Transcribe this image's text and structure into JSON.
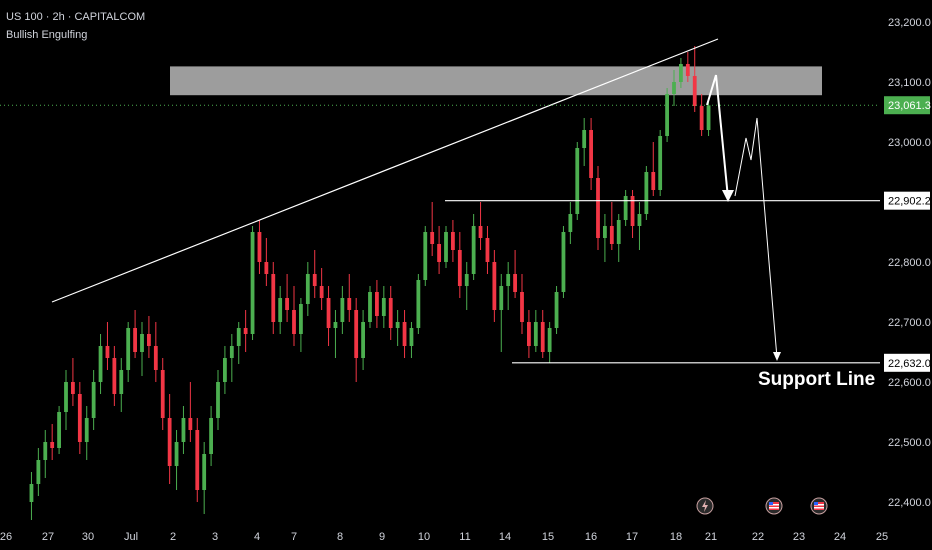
{
  "header": {
    "symbol": "US 100 · 2h · CAPITALCOM",
    "pattern": "Bullish Engulfing"
  },
  "colors": {
    "background": "#000000",
    "bull": "#4caf50",
    "bear": "#f23645",
    "current_price_tag": "#4caf50",
    "level_tag": "#ffffff",
    "resistance_zone": "#b8b8b8",
    "trendline": "#ffffff"
  },
  "chart_data": {
    "type": "candlestick",
    "ylim": [
      22370,
      23220
    ],
    "y_ticks": [
      {
        "value": 23200,
        "label": "23,200.0"
      },
      {
        "value": 23100,
        "label": "23,100.0"
      },
      {
        "value": 23000,
        "label": "23,000.0"
      },
      {
        "value": 22800,
        "label": "22,800.0"
      },
      {
        "value": 22700,
        "label": "22,700.0"
      },
      {
        "value": 22600,
        "label": "22,600.0"
      },
      {
        "value": 22500,
        "label": "22,500.0"
      },
      {
        "value": 22400,
        "label": "22,400.0"
      }
    ],
    "x_ticks": [
      "26",
      "27",
      "30",
      "Jul",
      "2",
      "3",
      "4",
      "7",
      "8",
      "9",
      "10",
      "11",
      "14",
      "15",
      "16",
      "17",
      "18",
      "21",
      "22",
      "23",
      "24",
      "25"
    ],
    "current_price": {
      "value": 23061.3,
      "label": "23,061.3"
    },
    "levels": [
      {
        "value": 22902.2,
        "label": "22,902.2"
      },
      {
        "value": 22632.0,
        "label": "22,632.0"
      }
    ],
    "resistance_zone": {
      "from": 23078,
      "to": 23126
    },
    "annotations": [
      {
        "text": "Support Line"
      }
    ],
    "event_icons": [
      "lightning-icon",
      "us-flag-icon",
      "us-flag-icon"
    ],
    "ohlc": [
      [
        22400,
        22450,
        22370,
        22430
      ],
      [
        22430,
        22490,
        22410,
        22470
      ],
      [
        22470,
        22520,
        22440,
        22500
      ],
      [
        22500,
        22530,
        22470,
        22490
      ],
      [
        22490,
        22560,
        22480,
        22550
      ],
      [
        22550,
        22620,
        22520,
        22600
      ],
      [
        22600,
        22640,
        22560,
        22580
      ],
      [
        22580,
        22600,
        22480,
        22500
      ],
      [
        22500,
        22560,
        22470,
        22540
      ],
      [
        22540,
        22620,
        22520,
        22600
      ],
      [
        22600,
        22680,
        22580,
        22660
      ],
      [
        22660,
        22700,
        22620,
        22640
      ],
      [
        22640,
        22660,
        22560,
        22580
      ],
      [
        22580,
        22640,
        22550,
        22620
      ],
      [
        22620,
        22700,
        22600,
        22690
      ],
      [
        22690,
        22720,
        22640,
        22650
      ],
      [
        22650,
        22700,
        22610,
        22680
      ],
      [
        22680,
        22710,
        22640,
        22660
      ],
      [
        22660,
        22700,
        22600,
        22620
      ],
      [
        22620,
        22640,
        22520,
        22540
      ],
      [
        22540,
        22580,
        22430,
        22460
      ],
      [
        22460,
        22520,
        22420,
        22500
      ],
      [
        22500,
        22560,
        22480,
        22540
      ],
      [
        22540,
        22600,
        22500,
        22520
      ],
      [
        22520,
        22540,
        22400,
        22420
      ],
      [
        22420,
        22500,
        22380,
        22480
      ],
      [
        22480,
        22560,
        22460,
        22540
      ],
      [
        22540,
        22620,
        22520,
        22600
      ],
      [
        22600,
        22660,
        22580,
        22640
      ],
      [
        22640,
        22680,
        22600,
        22660
      ],
      [
        22660,
        22700,
        22630,
        22690
      ],
      [
        22690,
        22720,
        22650,
        22680
      ],
      [
        22680,
        22860,
        22670,
        22850
      ],
      [
        22850,
        22870,
        22780,
        22800
      ],
      [
        22800,
        22840,
        22760,
        22780
      ],
      [
        22780,
        22800,
        22680,
        22700
      ],
      [
        22700,
        22760,
        22680,
        22740
      ],
      [
        22740,
        22780,
        22700,
        22720
      ],
      [
        22720,
        22760,
        22660,
        22680
      ],
      [
        22680,
        22740,
        22650,
        22730
      ],
      [
        22730,
        22800,
        22710,
        22780
      ],
      [
        22780,
        22820,
        22740,
        22760
      ],
      [
        22760,
        22790,
        22720,
        22740
      ],
      [
        22740,
        22760,
        22660,
        22690
      ],
      [
        22690,
        22720,
        22640,
        22700
      ],
      [
        22700,
        22760,
        22680,
        22740
      ],
      [
        22740,
        22780,
        22700,
        22720
      ],
      [
        22720,
        22740,
        22600,
        22640
      ],
      [
        22640,
        22720,
        22620,
        22700
      ],
      [
        22700,
        22760,
        22690,
        22750
      ],
      [
        22750,
        22770,
        22690,
        22710
      ],
      [
        22710,
        22760,
        22690,
        22740
      ],
      [
        22740,
        22760,
        22670,
        22690
      ],
      [
        22690,
        22720,
        22660,
        22700
      ],
      [
        22700,
        22720,
        22640,
        22660
      ],
      [
        22660,
        22700,
        22640,
        22690
      ],
      [
        22690,
        22780,
        22680,
        22770
      ],
      [
        22770,
        22860,
        22760,
        22850
      ],
      [
        22850,
        22900,
        22810,
        22830
      ],
      [
        22830,
        22860,
        22780,
        22800
      ],
      [
        22800,
        22860,
        22790,
        22850
      ],
      [
        22850,
        22870,
        22800,
        22820
      ],
      [
        22820,
        22850,
        22740,
        22760
      ],
      [
        22760,
        22800,
        22720,
        22780
      ],
      [
        22780,
        22880,
        22770,
        22860
      ],
      [
        22860,
        22900,
        22820,
        22840
      ],
      [
        22840,
        22860,
        22780,
        22800
      ],
      [
        22800,
        22820,
        22700,
        22720
      ],
      [
        22720,
        22780,
        22650,
        22760
      ],
      [
        22760,
        22800,
        22720,
        22780
      ],
      [
        22780,
        22820,
        22740,
        22750
      ],
      [
        22750,
        22780,
        22680,
        22700
      ],
      [
        22700,
        22720,
        22640,
        22660
      ],
      [
        22660,
        22720,
        22650,
        22700
      ],
      [
        22700,
        22720,
        22640,
        22650
      ],
      [
        22650,
        22700,
        22632,
        22690
      ],
      [
        22690,
        22760,
        22680,
        22750
      ],
      [
        22750,
        22860,
        22740,
        22850
      ],
      [
        22850,
        22900,
        22830,
        22880
      ],
      [
        22880,
        23000,
        22870,
        22990
      ],
      [
        22990,
        23040,
        22960,
        23020
      ],
      [
        23020,
        23040,
        22920,
        22940
      ],
      [
        22940,
        22960,
        22820,
        22840
      ],
      [
        22840,
        22880,
        22800,
        22860
      ],
      [
        22860,
        22900,
        22820,
        22830
      ],
      [
        22830,
        22880,
        22800,
        22870
      ],
      [
        22870,
        22920,
        22860,
        22910
      ],
      [
        22910,
        22920,
        22840,
        22860
      ],
      [
        22860,
        22900,
        22820,
        22880
      ],
      [
        22880,
        22960,
        22870,
        22950
      ],
      [
        22950,
        23000,
        22910,
        22920
      ],
      [
        22920,
        23020,
        22910,
        23010
      ],
      [
        23010,
        23090,
        23000,
        23080
      ],
      [
        23080,
        23120,
        23060,
        23100
      ],
      [
        23100,
        23140,
        23090,
        23130
      ],
      [
        23130,
        23150,
        23100,
        23110
      ],
      [
        23110,
        23160,
        23050,
        23060
      ],
      [
        23060,
        23080,
        23010,
        23020
      ],
      [
        23020,
        23070,
        23010,
        23061
      ]
    ]
  }
}
